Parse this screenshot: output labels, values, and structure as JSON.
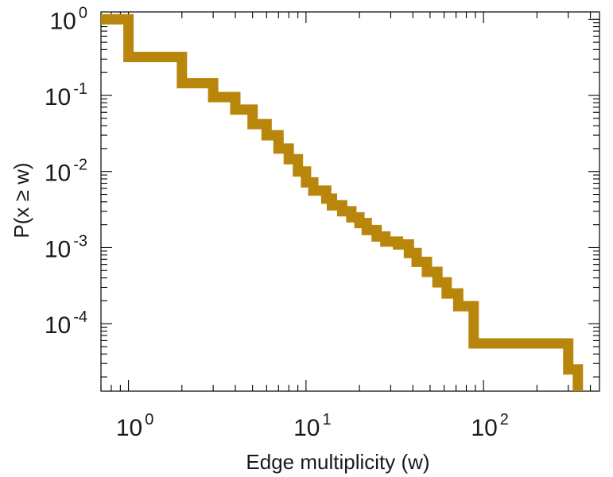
{
  "chart_data": {
    "type": "line",
    "step": true,
    "xscale": "log",
    "yscale": "log",
    "xlabel": "Edge multiplicity (w)",
    "ylabel": "P(x ≥ w)",
    "xlim": [
      0.7,
      450
    ],
    "ylim": [
      1.3e-05,
      1.25
    ],
    "x_ticks": [
      {
        "value": 1,
        "base": "10",
        "exp": "0"
      },
      {
        "value": 10,
        "base": "10",
        "exp": "1"
      },
      {
        "value": 100,
        "base": "10",
        "exp": "2"
      }
    ],
    "y_ticks": [
      {
        "value": 1,
        "base": "10",
        "exp": "0"
      },
      {
        "value": 0.1,
        "base": "10",
        "exp": "-1"
      },
      {
        "value": 0.01,
        "base": "10",
        "exp": "-2"
      },
      {
        "value": 0.001,
        "base": "10",
        "exp": "-3"
      },
      {
        "value": 0.0001,
        "base": "10",
        "exp": "-4"
      }
    ],
    "grid": false,
    "series": [
      {
        "color": "#b8860b",
        "points": [
          [
            0.7,
            1.0
          ],
          [
            1,
            1.0
          ],
          [
            1,
            0.32
          ],
          [
            2,
            0.32
          ],
          [
            2,
            0.145
          ],
          [
            3,
            0.145
          ],
          [
            3,
            0.095
          ],
          [
            4,
            0.095
          ],
          [
            4,
            0.065
          ],
          [
            5,
            0.065
          ],
          [
            5,
            0.042
          ],
          [
            6,
            0.042
          ],
          [
            6,
            0.03
          ],
          [
            7,
            0.03
          ],
          [
            7,
            0.02
          ],
          [
            8,
            0.02
          ],
          [
            8,
            0.0145
          ],
          [
            9,
            0.0145
          ],
          [
            9,
            0.01
          ],
          [
            10,
            0.01
          ],
          [
            10,
            0.0072
          ],
          [
            11,
            0.0072
          ],
          [
            11,
            0.0056
          ],
          [
            13,
            0.0056
          ],
          [
            13,
            0.0044
          ],
          [
            14,
            0.0044
          ],
          [
            14,
            0.0036
          ],
          [
            16,
            0.0036
          ],
          [
            16,
            0.003
          ],
          [
            18,
            0.003
          ],
          [
            18,
            0.0025
          ],
          [
            20,
            0.0025
          ],
          [
            20,
            0.0021
          ],
          [
            22,
            0.0021
          ],
          [
            22,
            0.0017
          ],
          [
            25,
            0.0017
          ],
          [
            25,
            0.0014
          ],
          [
            28,
            0.0014
          ],
          [
            28,
            0.0012
          ],
          [
            33,
            0.0012
          ],
          [
            33,
            0.0011
          ],
          [
            38,
            0.0011
          ],
          [
            38,
            0.00085
          ],
          [
            42,
            0.00085
          ],
          [
            42,
            0.00065
          ],
          [
            48,
            0.00065
          ],
          [
            48,
            0.00048
          ],
          [
            55,
            0.00048
          ],
          [
            55,
            0.00035
          ],
          [
            62,
            0.00035
          ],
          [
            62,
            0.00025
          ],
          [
            72,
            0.00025
          ],
          [
            72,
            0.00017
          ],
          [
            88,
            0.00017
          ],
          [
            88,
            5.5e-05
          ],
          [
            300,
            5.5e-05
          ],
          [
            300,
            2.5e-05
          ],
          [
            340,
            2.5e-05
          ],
          [
            340,
            1.3e-05
          ]
        ]
      }
    ]
  }
}
